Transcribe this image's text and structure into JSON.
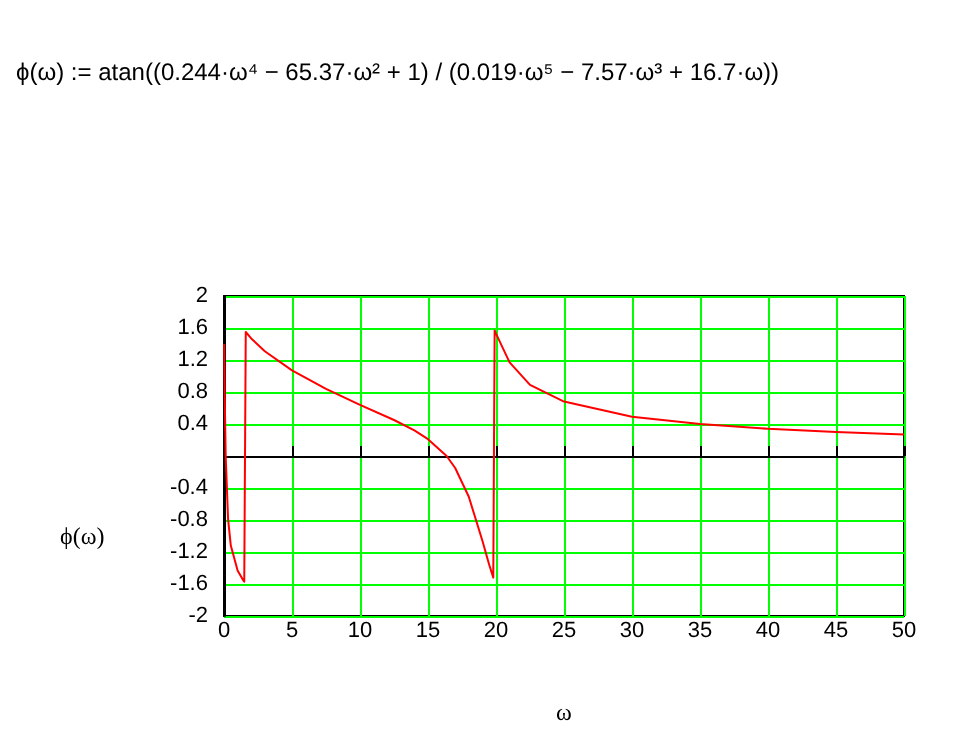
{
  "chart_data": {
    "type": "line",
    "annotations": [
      "ϕ(ω) := atan((0.244·ω⁴ − 65.37·ω² + 1) / (0.019·ω⁵ − 7.57·ω³ + 16.7·ω))"
    ],
    "xlabel": "ω",
    "ylabel": "ϕ(ω)",
    "series": [
      {
        "color": "#ff0000",
        "x": [
          0.01,
          0.05,
          0.124,
          0.3,
          0.5,
          1,
          1.4,
          1.489,
          1.6,
          2,
          3,
          5,
          7.5,
          10,
          12.5,
          14,
          15,
          16.37,
          17,
          18,
          19,
          19.5,
          19.8,
          19.9,
          20,
          21,
          22.5,
          25,
          30,
          35,
          40,
          45,
          50
        ],
        "values": [
          1.4,
          0.79,
          0,
          -0.79,
          -1.12,
          -1.43,
          -1.55,
          -1.57,
          1.55,
          1.47,
          1.31,
          1.07,
          0.84,
          0.64,
          0.45,
          0.32,
          0.21,
          0,
          -0.15,
          -0.51,
          -1.06,
          -1.36,
          -1.52,
          1.57,
          1.53,
          1.17,
          0.89,
          0.68,
          0.49,
          0.4,
          0.34,
          0.3,
          0.27
        ]
      }
    ],
    "xlim": [
      0,
      50
    ],
    "xticks": [
      0,
      5,
      10,
      15,
      20,
      25,
      30,
      35,
      40,
      45,
      50
    ],
    "ylim": [
      -2,
      2
    ],
    "yticks": [
      -2,
      -1.6,
      -1.2,
      -0.8,
      -0.4,
      {
        "value": 0,
        "label": null
      },
      0.4,
      0.8,
      1.2,
      1.6,
      2
    ],
    "grid": true,
    "marker": "none",
    "line_style": "solid"
  }
}
